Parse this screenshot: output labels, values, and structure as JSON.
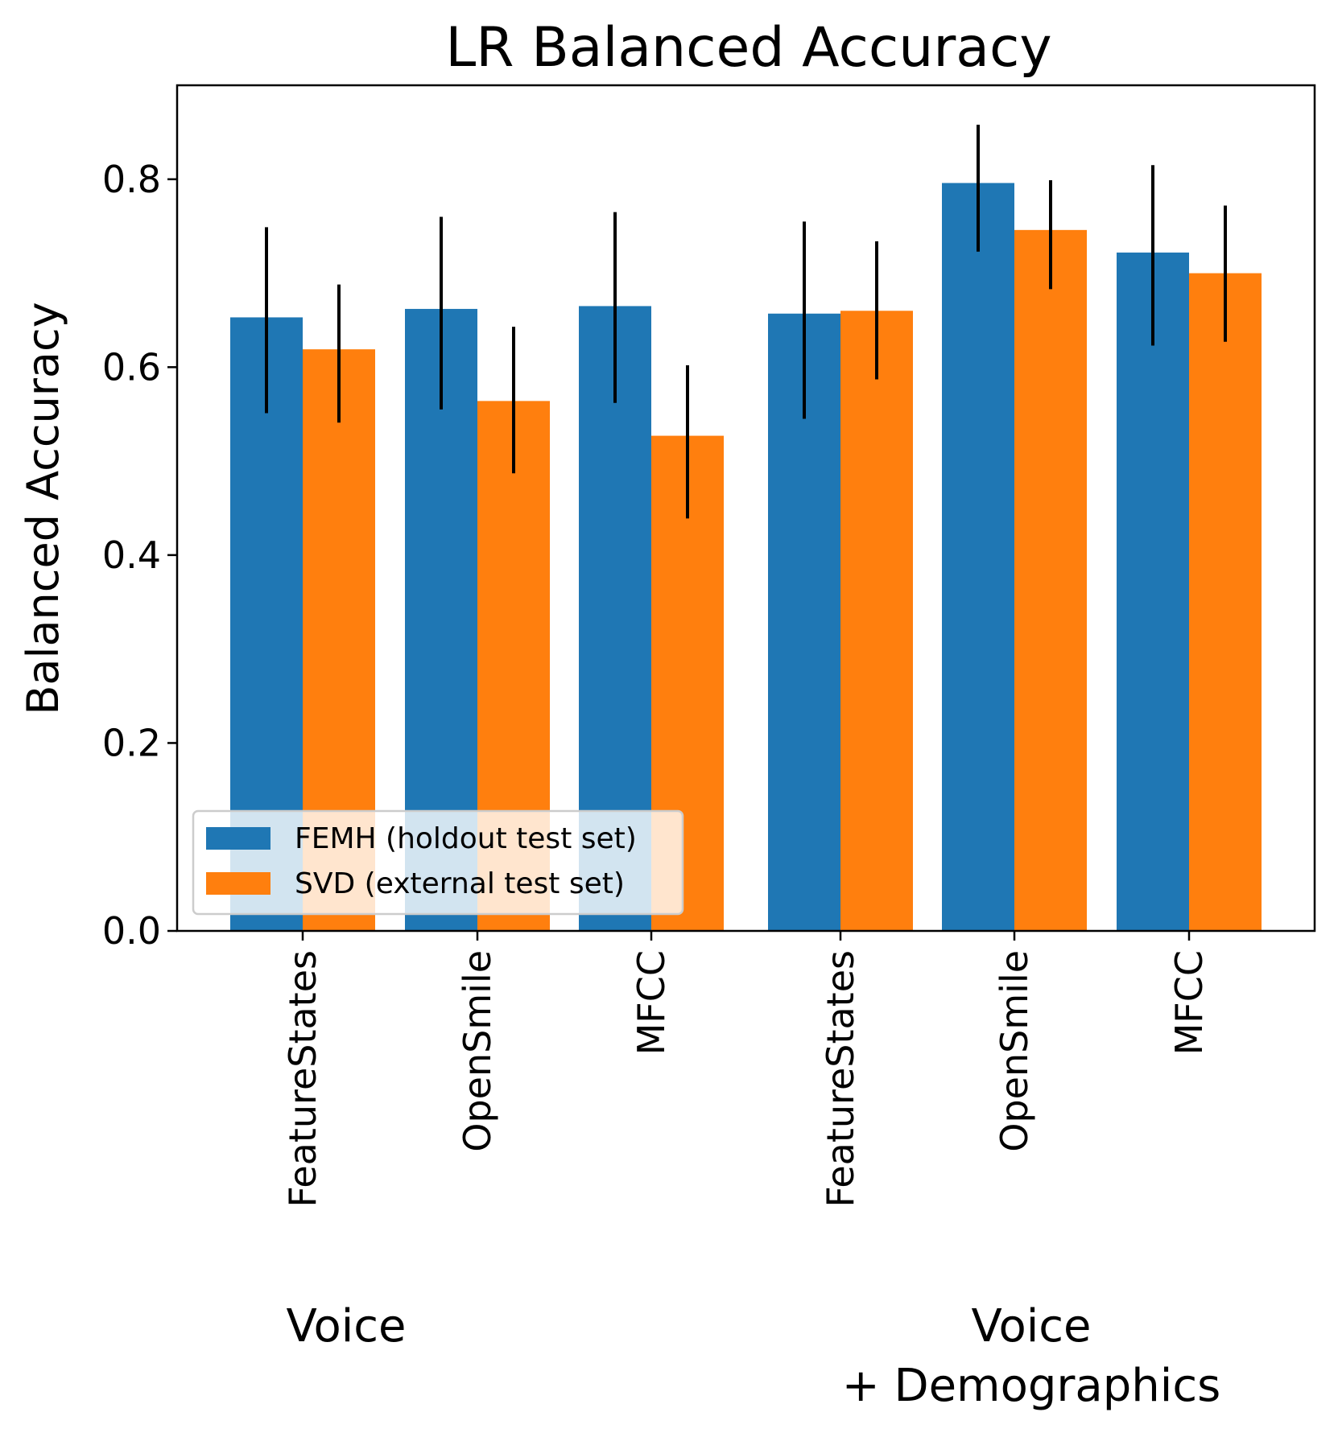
{
  "chart_data": {
    "type": "bar",
    "title": "LR Balanced Accuracy",
    "xlabel": "",
    "ylabel": "Balanced Accuracy",
    "ylim": [
      0,
      0.9
    ],
    "yticks": [
      0.0,
      0.2,
      0.4,
      0.6,
      0.8
    ],
    "ytick_labels": [
      "0.0",
      "0.2",
      "0.4",
      "0.6",
      "0.8"
    ],
    "categories": [
      "FeatureStates",
      "OpenSmile",
      "MFCC",
      "FeatureStates",
      "OpenSmile",
      "MFCC"
    ],
    "groups": [
      {
        "label": "Voice",
        "categories": [
          0,
          1,
          2
        ]
      },
      {
        "label": "Voice\n+ Demographics",
        "label_lines": [
          "Voice",
          "+ Demographics"
        ],
        "categories": [
          3,
          4,
          5
        ]
      }
    ],
    "series": [
      {
        "name": "FEMH (holdout test set)",
        "color": "#1f77b4",
        "values": [
          0.653,
          0.662,
          0.665,
          0.657,
          0.796,
          0.722
        ],
        "err_low": [
          0.551,
          0.555,
          0.562,
          0.545,
          0.723,
          0.623
        ],
        "err_high": [
          0.749,
          0.76,
          0.765,
          0.755,
          0.858,
          0.815
        ]
      },
      {
        "name": "SVD (external test set)",
        "color": "#ff7f0e",
        "values": [
          0.619,
          0.564,
          0.527,
          0.66,
          0.746,
          0.7
        ],
        "err_low": [
          0.541,
          0.487,
          0.439,
          0.587,
          0.683,
          0.627
        ],
        "err_high": [
          0.688,
          0.643,
          0.602,
          0.734,
          0.799,
          0.772
        ]
      }
    ],
    "legend": {
      "position": "lower-left"
    },
    "grid": false
  }
}
